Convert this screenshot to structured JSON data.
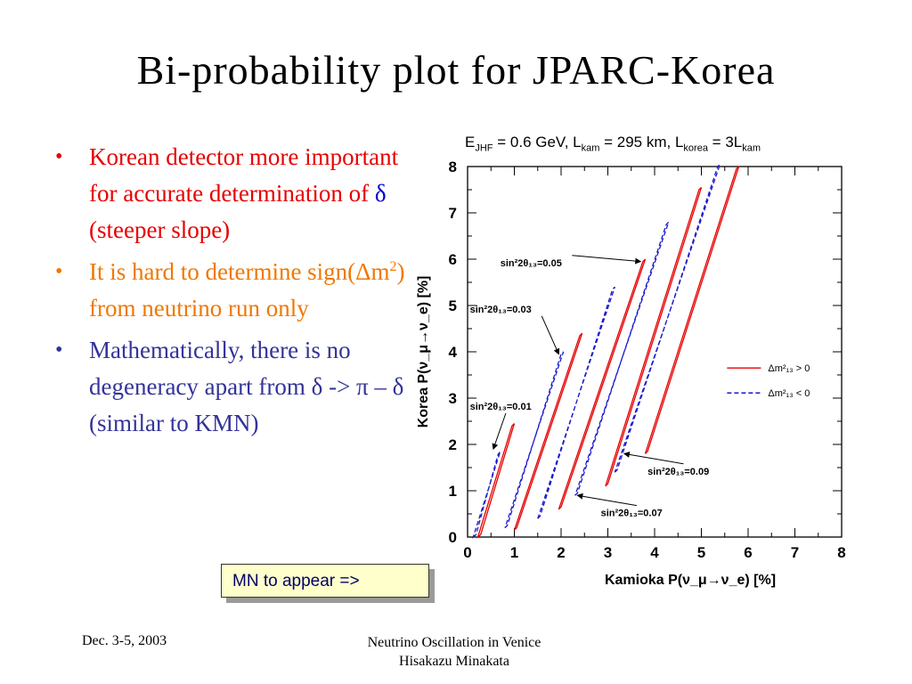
{
  "slide": {
    "title": "Bi-probability  plot  for  JPARC-Korea",
    "colors": {
      "red": "#e60000",
      "orange": "#f07800",
      "navy": "#333399"
    }
  },
  "bullets": [
    {
      "color": "#e60000",
      "parts": [
        {
          "t": "Korean detector more important for accurate determination of "
        },
        {
          "t": "δ",
          "color": "#0000cc"
        },
        {
          "t": " (steeper slope)"
        }
      ]
    },
    {
      "color": "#f07800",
      "parts": [
        {
          "t": "It is hard to determine sign(Δm"
        },
        {
          "t": "2",
          "sup": true
        },
        {
          "t": ") from neutrino run only"
        }
      ]
    },
    {
      "color": "#333399",
      "parts": [
        {
          "t": "Mathematically, there is no degeneracy apart from δ -> π – δ (similar to KMN)"
        }
      ]
    }
  ],
  "callout": {
    "text": "MN to appear =>"
  },
  "footer": {
    "left": "Dec. 3-5, 2003",
    "center_line1": "Neutrino Oscillation in Venice",
    "center_line2": "Hisakazu Minakata"
  },
  "chart_data": {
    "type": "line",
    "title": "E_JHF = 0.6 GeV, L_kam = 295 km, L_korea = 3L_kam",
    "xlabel": "Kamioka P(ν_μ→ν_e) [%]",
    "ylabel": "Korea P(ν_μ→ν_e) [%]",
    "xlim": [
      0,
      8
    ],
    "ylim": [
      0,
      8
    ],
    "xticks": [
      "0",
      "1",
      "2",
      "3",
      "4",
      "5",
      "6",
      "7",
      "8"
    ],
    "yticks": [
      "0",
      "1",
      "2",
      "3",
      "4",
      "5",
      "6",
      "7",
      "8"
    ],
    "legend": {
      "placement": "right",
      "entries": [
        {
          "label": "Δm²₁₃ > 0",
          "color": "#e60000",
          "dash": false
        },
        {
          "label": "Δm²₁₃ < 0",
          "color": "#0000cc",
          "dash": true
        }
      ]
    },
    "series": [
      {
        "group": "sin²2θ₁₃=0.01",
        "sign": "pos",
        "points": [
          [
            0.22,
            0.0
          ],
          [
            0.28,
            0.05
          ],
          [
            1.0,
            2.45
          ],
          [
            0.95,
            2.4
          ]
        ]
      },
      {
        "group": "sin²2θ₁₃=0.01",
        "sign": "neg",
        "points": [
          [
            0.12,
            0.0
          ],
          [
            0.18,
            0.05
          ],
          [
            0.65,
            1.78
          ],
          [
            0.7,
            1.85
          ]
        ]
      },
      {
        "group": "sin²2θ₁₃=0.03",
        "sign": "pos",
        "points": [
          [
            1.0,
            0.15
          ],
          [
            1.05,
            0.2
          ],
          [
            2.45,
            4.4
          ],
          [
            2.4,
            4.35
          ]
        ]
      },
      {
        "group": "sin²2θ₁₃=0.03",
        "sign": "neg",
        "points": [
          [
            0.8,
            0.2
          ],
          [
            0.85,
            0.25
          ],
          [
            2.0,
            3.95
          ],
          [
            2.05,
            4.0
          ]
        ]
      },
      {
        "group": "sin²2θ₁₃=0.05",
        "sign": "pos",
        "points": [
          [
            1.95,
            0.6
          ],
          [
            2.0,
            0.65
          ],
          [
            3.8,
            6.0
          ],
          [
            3.75,
            5.95
          ]
        ]
      },
      {
        "group": "sin²2θ₁₃=0.05",
        "sign": "neg",
        "points": [
          [
            1.5,
            0.4
          ],
          [
            1.55,
            0.45
          ],
          [
            3.1,
            5.35
          ],
          [
            3.15,
            5.4
          ]
        ]
      },
      {
        "group": "sin²2θ₁₃=0.07",
        "sign": "pos",
        "points": [
          [
            2.95,
            1.1
          ],
          [
            3.0,
            1.15
          ],
          [
            5.0,
            7.55
          ],
          [
            4.95,
            7.5
          ]
        ]
      },
      {
        "group": "sin²2θ₁₃=0.07",
        "sign": "neg",
        "points": [
          [
            2.3,
            0.9
          ],
          [
            2.35,
            0.95
          ],
          [
            4.25,
            6.75
          ],
          [
            4.3,
            6.8
          ]
        ]
      },
      {
        "group": "sin²2θ₁₃=0.09",
        "sign": "pos",
        "points": [
          [
            3.8,
            1.8
          ],
          [
            3.85,
            1.85
          ],
          [
            5.8,
            8.0
          ],
          [
            5.75,
            7.95
          ]
        ]
      },
      {
        "group": "sin²2θ₁₃=0.09",
        "sign": "neg",
        "points": [
          [
            3.15,
            1.4
          ],
          [
            3.2,
            1.45
          ],
          [
            5.35,
            8.0
          ],
          [
            5.4,
            8.05
          ]
        ]
      }
    ],
    "annotations": [
      {
        "text": "sin²2θ₁₃=0.01",
        "at": [
          0.05,
          2.75
        ],
        "arrow_to": [
          0.55,
          1.9
        ]
      },
      {
        "text": "sin²2θ₁₃=0.03",
        "at": [
          0.05,
          4.85
        ],
        "arrow_to": [
          1.95,
          3.95
        ]
      },
      {
        "text": "sin²2θ₁₃=0.05",
        "at": [
          0.7,
          5.85
        ],
        "arrow_to": [
          3.7,
          5.95
        ]
      },
      {
        "text": "sin²2θ₁₃=0.07",
        "at": [
          2.85,
          0.45
        ],
        "arrow_to": [
          2.35,
          0.9
        ]
      },
      {
        "text": "sin²2θ₁₃=0.09",
        "at": [
          3.85,
          1.35
        ],
        "arrow_to": [
          3.35,
          1.8
        ]
      }
    ]
  }
}
